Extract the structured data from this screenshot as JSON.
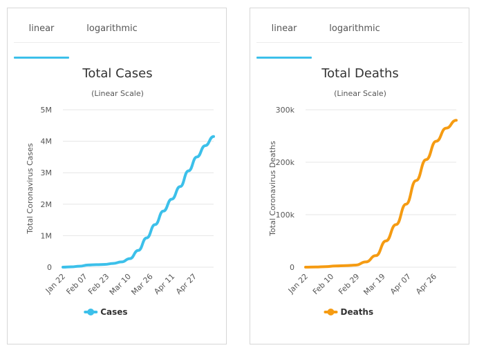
{
  "tabs": {
    "linear": "linear",
    "logarithmic": "logarithmic",
    "active": "linear"
  },
  "chart_data": [
    {
      "type": "line",
      "title": "Total Cases",
      "subtitle": "(Linear Scale)",
      "ylabel": "Total Coronavirus Cases",
      "ylim": [
        0,
        5000000
      ],
      "yticks": [
        0,
        1000000,
        2000000,
        3000000,
        4000000,
        5000000
      ],
      "ytick_labels": [
        "0",
        "1M",
        "2M",
        "3M",
        "4M",
        "5M"
      ],
      "xtick_labels": [
        "Jan 22",
        "Feb 07",
        "Feb 23",
        "Mar 10",
        "Mar 26",
        "Apr 11",
        "Apr 27"
      ],
      "x": [
        "Jan 22",
        "Feb 01",
        "Feb 07",
        "Feb 15",
        "Feb 23",
        "Mar 01",
        "Mar 10",
        "Mar 15",
        "Mar 20",
        "Mar 26",
        "Apr 01",
        "Apr 06",
        "Apr 11",
        "Apr 16",
        "Apr 21",
        "Apr 27",
        "May 02",
        "May 07",
        "May 10"
      ],
      "series": [
        {
          "name": "Cases",
          "color": "#3cc0ea",
          "values": [
            600,
            12000,
            31000,
            69000,
            79000,
            88000,
            119000,
            167000,
            273000,
            530000,
            930000,
            1350000,
            1780000,
            2160000,
            2560000,
            3060000,
            3500000,
            3860000,
            4150000
          ]
        }
      ],
      "legend": "bottom-center",
      "grid": true
    },
    {
      "type": "line",
      "title": "Total Deaths",
      "subtitle": "(Linear Scale)",
      "ylabel": "Total Coronavirus Deaths",
      "ylim": [
        0,
        300000
      ],
      "yticks": [
        0,
        100000,
        200000,
        300000
      ],
      "ytick_labels": [
        "0",
        "100k",
        "200k",
        "300k"
      ],
      "xtick_labels": [
        "Jan 22",
        "Feb 10",
        "Feb 29",
        "Mar 19",
        "Apr 07",
        "Apr 26"
      ],
      "x": [
        "Jan 22",
        "Feb 01",
        "Feb 10",
        "Feb 20",
        "Feb 29",
        "Mar 10",
        "Mar 19",
        "Mar 25",
        "Apr 01",
        "Apr 07",
        "Apr 13",
        "Apr 19",
        "Apr 26",
        "May 02",
        "May 07",
        "May 10"
      ],
      "series": [
        {
          "name": "Deaths",
          "color": "#f59b12",
          "values": [
            17,
            260,
            1000,
            2200,
            2900,
            4000,
            10000,
            22000,
            50000,
            81000,
            120000,
            165000,
            205000,
            240000,
            265000,
            280000
          ]
        }
      ],
      "legend": "bottom-center",
      "grid": true
    }
  ]
}
